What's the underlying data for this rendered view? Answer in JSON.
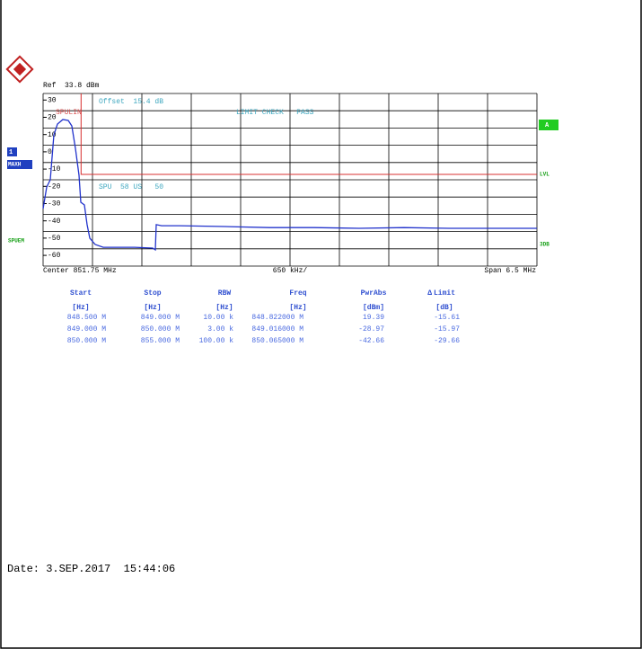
{
  "chart_data": {
    "type": "line",
    "ref_label": "Ref  33.8 dBm",
    "offset_label": "Offset  15.4 dB",
    "limit_name": "SPULIN",
    "limit_check": "LIMIT CHECK   PASS",
    "marker_text": "SPU  58 US   50",
    "trace_number": "1",
    "trace_mode": "MAXH",
    "mode_label": "SPUEM",
    "right_labels": [
      "A",
      "LVL",
      "3DB"
    ],
    "center_label": "Center 851.75 MHz",
    "div_label": "650 kHz/",
    "span_label": "Span 6.5 MHz",
    "xlim": [
      848.5,
      855.0
    ],
    "ylim": [
      -66.2,
      33.8
    ],
    "yticks": [
      30,
      20,
      10,
      0,
      -10,
      -20,
      -30,
      -40,
      -50,
      -60
    ],
    "grid": true,
    "trace": {
      "color": "#2233cc",
      "x": [
        848.5,
        848.547,
        848.595,
        848.642,
        848.689,
        848.76,
        848.831,
        848.878,
        848.925,
        848.973,
        848.996,
        849.044,
        849.079,
        849.115,
        849.185,
        849.292,
        849.469,
        849.705,
        849.942,
        849.977,
        849.989,
        850.06,
        850.296,
        850.887,
        851.478,
        852.069,
        852.66,
        853.251,
        853.842,
        854.433,
        855.0
      ],
      "values": [
        -32.9,
        -20.4,
        -16.2,
        9.8,
        16.1,
        18.7,
        18.2,
        15.0,
        2.0,
        -13.6,
        -29.2,
        -30.8,
        -42.2,
        -50.0,
        -53.7,
        -55.3,
        -55.3,
        -55.3,
        -55.8,
        -56.8,
        -42.2,
        -42.8,
        -42.8,
        -43.3,
        -43.9,
        -43.9,
        -44.3,
        -43.9,
        -44.3,
        -44.3,
        -44.3
      ]
    },
    "limit_line": {
      "color": "#d83030",
      "x": [
        849.0,
        849.0,
        855.0
      ],
      "values": [
        33.8,
        -13.1,
        -13.1
      ]
    }
  },
  "table": {
    "headers": [
      "Start",
      "Stop",
      "RBW",
      "Freq",
      "PwrAbs",
      "Limit"
    ],
    "delta_symbol": "Δ",
    "units": [
      "[Hz]",
      "[Hz]",
      "[Hz]",
      "[Hz]",
      "[dBm]",
      "[dB]"
    ],
    "rows": [
      [
        "848.500 M",
        "849.000 M",
        "10.00 k",
        "848.822000 M",
        "19.39",
        "-15.61"
      ],
      [
        "849.000 M",
        "850.000 M",
        "3.00 k",
        "849.016000 M",
        "-28.97",
        "-15.97"
      ],
      [
        "850.000 M",
        "855.000 M",
        "100.00 k",
        "850.065000 M",
        "-42.66",
        "-29.66"
      ]
    ]
  },
  "date": "Date: 3.SEP.2017  15:44:06"
}
